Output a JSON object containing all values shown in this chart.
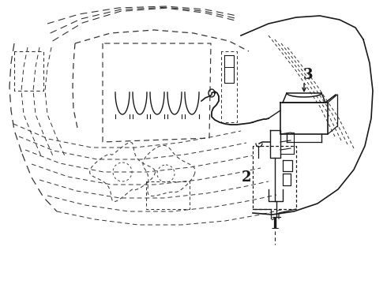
{
  "background_color": "#ffffff",
  "line_color": "#1a1a1a",
  "figsize": [
    4.9,
    3.6
  ],
  "dpi": 100,
  "label_1": [
    0.545,
    0.255
  ],
  "label_2": [
    0.465,
    0.435
  ],
  "label_3": [
    0.685,
    0.745
  ],
  "arrow_color": "#1a1a1a"
}
